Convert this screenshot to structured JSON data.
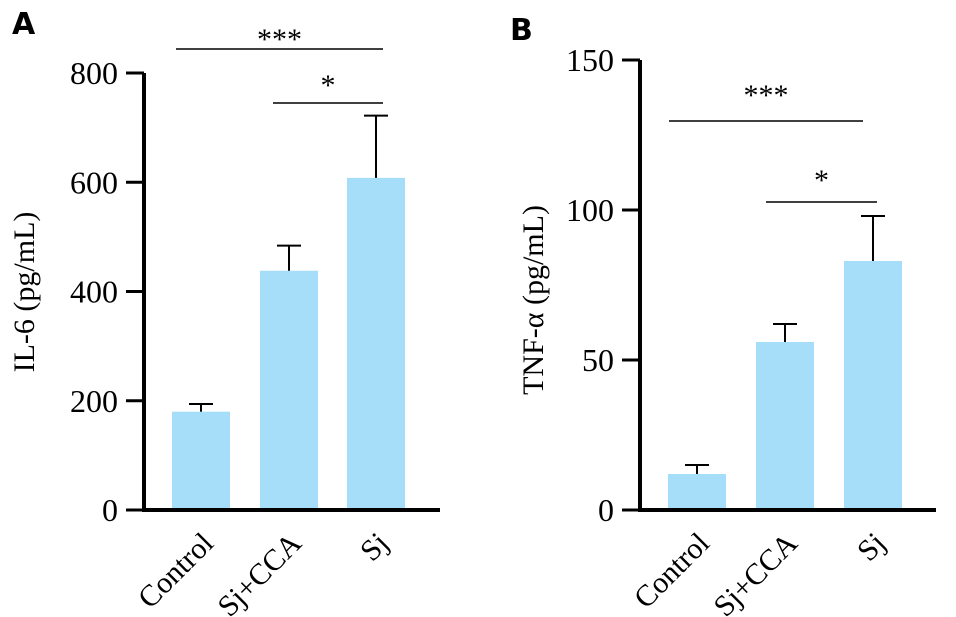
{
  "chart_data": [
    {
      "type": "bar",
      "panel": "A",
      "categories": [
        "Control",
        "Sj+CCA",
        "Sj"
      ],
      "values": [
        180,
        438,
        608
      ],
      "errors": [
        14,
        46,
        114
      ],
      "ylabel": "IL-6 (pg/mL)",
      "ylim": [
        0,
        800
      ],
      "yticks": [
        0,
        200,
        400,
        600,
        800
      ],
      "bar_color": "#a6ddf8",
      "significance": [
        {
          "from": 0,
          "to": 2,
          "label": "***"
        },
        {
          "from": 1,
          "to": 2,
          "label": "*"
        }
      ]
    },
    {
      "type": "bar",
      "panel": "B",
      "categories": [
        "Control",
        "Sj+CCA",
        "Sj"
      ],
      "values": [
        12,
        56,
        83
      ],
      "errors": [
        3,
        6,
        15
      ],
      "ylabel": "TNF-α (pg/mL)",
      "ylim": [
        0,
        150
      ],
      "yticks": [
        0,
        50,
        100,
        150
      ],
      "bar_color": "#a6ddf8",
      "significance": [
        {
          "from": 0,
          "to": 2,
          "label": "***"
        },
        {
          "from": 1,
          "to": 2,
          "label": "*"
        }
      ]
    }
  ]
}
